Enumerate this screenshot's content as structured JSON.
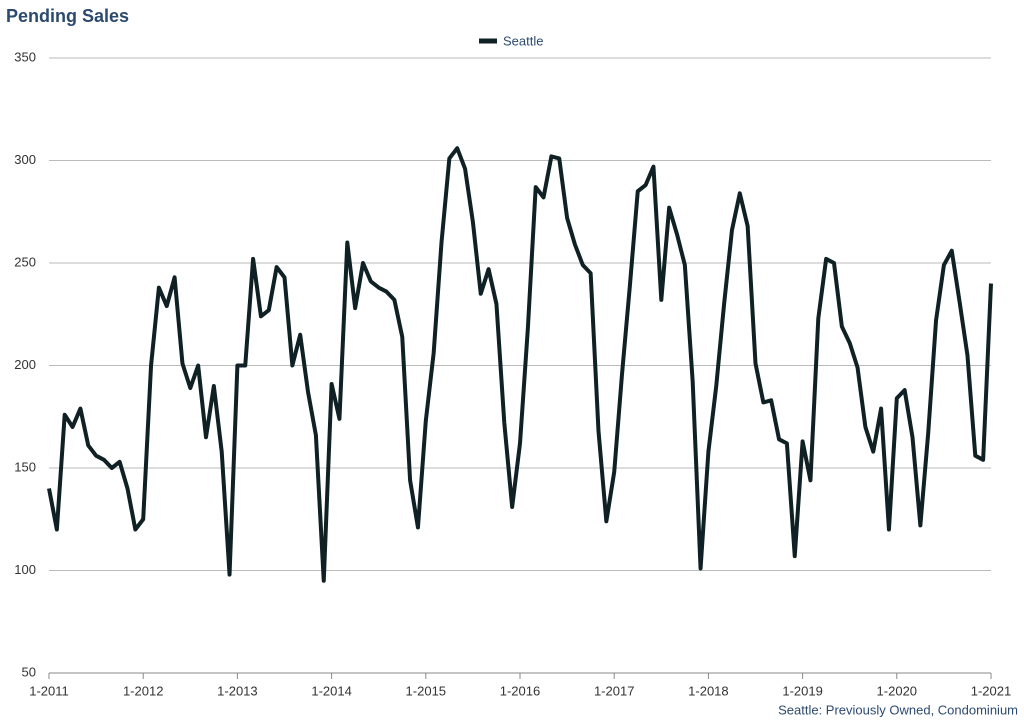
{
  "chart_data": {
    "type": "line",
    "title": "Pending Sales",
    "footnote": "Seattle: Previously Owned, Condominium",
    "categories": [
      "1-2011",
      null,
      null,
      null,
      null,
      null,
      null,
      null,
      null,
      null,
      null,
      null,
      "1-2012",
      null,
      null,
      null,
      null,
      null,
      null,
      null,
      null,
      null,
      null,
      null,
      "1-2013",
      null,
      null,
      null,
      null,
      null,
      null,
      null,
      null,
      null,
      null,
      null,
      "1-2014",
      null,
      null,
      null,
      null,
      null,
      null,
      null,
      null,
      null,
      null,
      null,
      "1-2015",
      null,
      null,
      null,
      null,
      null,
      null,
      null,
      null,
      null,
      null,
      null,
      "1-2016",
      null,
      null,
      null,
      null,
      null,
      null,
      null,
      null,
      null,
      null,
      null,
      "1-2017",
      null,
      null,
      null,
      null,
      null,
      null,
      null,
      null,
      null,
      null,
      null,
      "1-2018",
      null,
      null,
      null,
      null,
      null,
      null,
      null,
      null,
      null,
      null,
      null,
      "1-2019",
      null,
      null,
      null,
      null,
      null,
      null,
      null,
      null,
      null,
      null,
      null,
      "1-2020",
      null,
      null,
      null,
      null,
      null,
      null,
      null,
      null,
      null,
      null,
      null,
      "1-2021"
    ],
    "series": [
      {
        "name": "Seattle",
        "color": "#0f2124",
        "values": [
          140,
          120,
          176,
          170,
          179,
          161,
          156,
          154,
          150,
          153,
          140,
          120,
          125,
          200,
          238,
          229,
          243,
          201,
          189,
          200,
          165,
          190,
          158,
          98,
          200,
          200,
          252,
          224,
          227,
          248,
          243,
          200,
          215,
          187,
          166,
          95,
          191,
          174,
          260,
          228,
          250,
          241,
          238,
          236,
          232,
          214,
          144,
          121,
          173,
          206,
          260,
          301,
          306,
          296,
          270,
          235,
          247,
          230,
          172,
          131,
          162,
          218,
          287,
          282,
          302,
          301,
          272,
          259,
          249,
          245,
          168,
          124,
          148,
          196,
          239,
          285,
          288,
          297,
          232,
          277,
          264,
          249,
          192,
          101,
          158,
          190,
          230,
          266,
          284,
          268,
          201,
          182,
          183,
          164,
          162,
          107,
          163,
          144,
          223,
          252,
          250,
          219,
          211,
          199,
          170,
          158,
          179,
          120,
          184,
          188,
          165,
          122,
          167,
          222,
          249,
          256,
          231,
          205,
          156,
          154,
          240
        ]
      }
    ],
    "ylim": [
      50,
      350
    ],
    "yticks": [
      50,
      100,
      150,
      200,
      250,
      300,
      350
    ],
    "grid": true
  }
}
